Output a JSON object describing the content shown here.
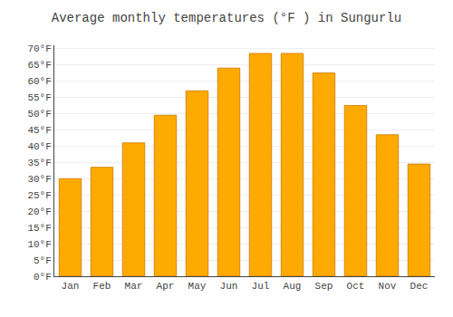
{
  "chart_data": {
    "type": "bar",
    "title": "Average monthly temperatures (°F ) in Sungurlu",
    "categories": [
      "Jan",
      "Feb",
      "Mar",
      "Apr",
      "May",
      "Jun",
      "Jul",
      "Aug",
      "Sep",
      "Oct",
      "Nov",
      "Dec"
    ],
    "values": [
      30,
      33.5,
      41,
      49.5,
      57,
      64,
      68.5,
      68.5,
      62.5,
      52.5,
      43.5,
      34.5
    ],
    "color": "#FFAA00",
    "ylim": [
      0,
      71
    ],
    "yticks": [
      {
        "value": 0,
        "label": "0°F"
      },
      {
        "value": 5,
        "label": "5°F"
      },
      {
        "value": 10,
        "label": "10°F"
      },
      {
        "value": 15,
        "label": "15°F"
      },
      {
        "value": 20,
        "label": "20°F"
      },
      {
        "value": 25,
        "label": "25°F"
      },
      {
        "value": 30,
        "label": "30°F"
      },
      {
        "value": 35,
        "label": "35°F"
      },
      {
        "value": 40,
        "label": "40°F"
      },
      {
        "value": 45,
        "label": "45°F"
      },
      {
        "value": 50,
        "label": "50°F"
      },
      {
        "value": 55,
        "label": "55°F"
      },
      {
        "value": 60,
        "label": "60°F"
      },
      {
        "value": 65,
        "label": "65°F"
      },
      {
        "value": 70,
        "label": "70°F"
      }
    ],
    "grid": true
  }
}
